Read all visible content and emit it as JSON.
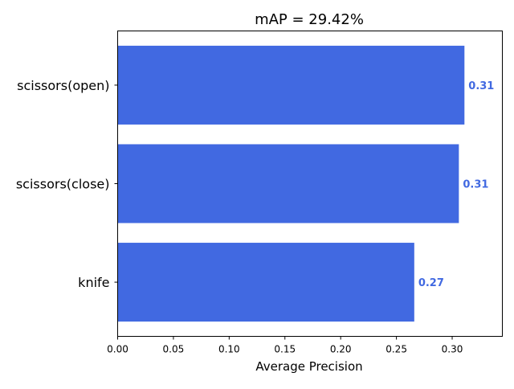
{
  "chart_data": {
    "type": "bar",
    "orientation": "horizontal",
    "title": "mAP = 29.42%",
    "xlabel": "Average Precision",
    "ylabel": "",
    "categories": [
      "knife",
      "scissors(close)",
      "scissors(open)"
    ],
    "values": [
      0.266,
      0.306,
      0.311
    ],
    "value_labels": [
      "0.27",
      "0.31",
      "0.31"
    ],
    "xlim": [
      0,
      0.345
    ],
    "xticks": [
      0.0,
      0.05,
      0.1,
      0.15,
      0.2,
      0.25,
      0.3
    ],
    "xtick_labels": [
      "0.00",
      "0.05",
      "0.10",
      "0.15",
      "0.20",
      "0.25",
      "0.30"
    ],
    "grid": false,
    "legend": "none",
    "bar_color": "#4169e1",
    "label_color": "#4169e1"
  }
}
